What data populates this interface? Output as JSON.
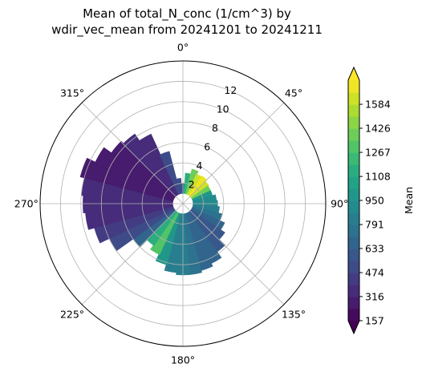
{
  "chart_data": {
    "type": "polar-heatmap",
    "title_line1": "Mean of total_N_conc (1/cm^3) by",
    "title_line2": "wdir_vec_mean from 20241201 to 20241211",
    "angular_ticks": [
      "0°",
      "45°",
      "90°",
      "135°",
      "180°",
      "225°",
      "270°",
      "315°"
    ],
    "radial_ticks": [
      "2",
      "4",
      "6",
      "8",
      "10",
      "12"
    ],
    "radial_values": [
      2,
      4,
      6,
      8,
      10,
      12
    ],
    "rlim": [
      0,
      14
    ],
    "direction": "clockwise",
    "zero_location": "N",
    "colorbar": {
      "label": "Mean",
      "ticks": [
        "157",
        "316",
        "474",
        "633",
        "791",
        "950",
        "1108",
        "1267",
        "1426",
        "1584"
      ],
      "tick_values": [
        157,
        316,
        474,
        633,
        791,
        950,
        1108,
        1267,
        1426,
        1584
      ],
      "range": [
        157,
        1743
      ],
      "colormap": "viridis",
      "extend": "both"
    },
    "wind_bins_note": "",
    "data_cells": [
      {
        "dir": 0,
        "r_from": 1,
        "r_to": 2,
        "value": 700
      },
      {
        "dir": 10,
        "r_from": 1,
        "r_to": 3,
        "value": 1150
      },
      {
        "dir": 20,
        "r_from": 1,
        "r_to": 3.5,
        "value": 1400
      },
      {
        "dir": 30,
        "r_from": 1,
        "r_to": 3.2,
        "value": 1600
      },
      {
        "dir": 40,
        "r_from": 1,
        "r_to": 3.3,
        "value": 1700
      },
      {
        "dir": 50,
        "r_from": 1,
        "r_to": 3.1,
        "value": 1650
      },
      {
        "dir": 60,
        "r_from": 1,
        "r_to": 3,
        "value": 1350
      },
      {
        "dir": 70,
        "r_from": 1,
        "r_to": 3,
        "value": 1000
      },
      {
        "dir": 80,
        "r_from": 1,
        "r_to": 3.3,
        "value": 880
      },
      {
        "dir": 90,
        "r_from": 1,
        "r_to": 3.4,
        "value": 900
      },
      {
        "dir": 100,
        "r_from": 1,
        "r_to": 3.6,
        "value": 800
      },
      {
        "dir": 110,
        "r_from": 1,
        "r_to": 4,
        "value": 720
      },
      {
        "dir": 120,
        "r_from": 1,
        "r_to": 4.5,
        "value": 650
      },
      {
        "dir": 130,
        "r_from": 1,
        "r_to": 5,
        "value": 600
      },
      {
        "dir": 140,
        "r_from": 1,
        "r_to": 5.8,
        "value": 620
      },
      {
        "dir": 150,
        "r_from": 1,
        "r_to": 6.5,
        "value": 640
      },
      {
        "dir": 160,
        "r_from": 1,
        "r_to": 6.8,
        "value": 700
      },
      {
        "dir": 170,
        "r_from": 1,
        "r_to": 7,
        "value": 760
      },
      {
        "dir": 180,
        "r_from": 1,
        "r_to": 7,
        "value": 800
      },
      {
        "dir": 190,
        "r_from": 1,
        "r_to": 6.8,
        "value": 860
      },
      {
        "dir": 200,
        "r_from": 1,
        "r_to": 6.2,
        "value": 1000
      },
      {
        "dir": 210,
        "r_from": 1,
        "r_to": 5.5,
        "value": 1300
      },
      {
        "dir": 220,
        "r_from": 1,
        "r_to": 5,
        "value": 1150
      },
      {
        "dir": 230,
        "r_from": 1,
        "r_to": 6,
        "value": 700
      },
      {
        "dir": 240,
        "r_from": 1,
        "r_to": 8,
        "value": 520
      },
      {
        "dir": 250,
        "r_from": 1,
        "r_to": 9,
        "value": 420
      },
      {
        "dir": 260,
        "r_from": 1,
        "r_to": 9.6,
        "value": 380
      },
      {
        "dir": 270,
        "r_from": 1,
        "r_to": 9.8,
        "value": 360
      },
      {
        "dir": 280,
        "r_from": 1,
        "r_to": 10,
        "value": 320
      },
      {
        "dir": 290,
        "r_from": 1,
        "r_to": 10.4,
        "value": 280
      },
      {
        "dir": 300,
        "r_from": 1,
        "r_to": 9.5,
        "value": 260
      },
      {
        "dir": 310,
        "r_from": 1,
        "r_to": 8.6,
        "value": 300
      },
      {
        "dir": 320,
        "r_from": 1,
        "r_to": 8.3,
        "value": 320
      },
      {
        "dir": 330,
        "r_from": 1,
        "r_to": 7.5,
        "value": 380
      },
      {
        "dir": 340,
        "r_from": 1,
        "r_to": 5.3,
        "value": 480
      },
      {
        "dir": 350,
        "r_from": 1,
        "r_to": 2.5,
        "value": 520
      }
    ]
  }
}
